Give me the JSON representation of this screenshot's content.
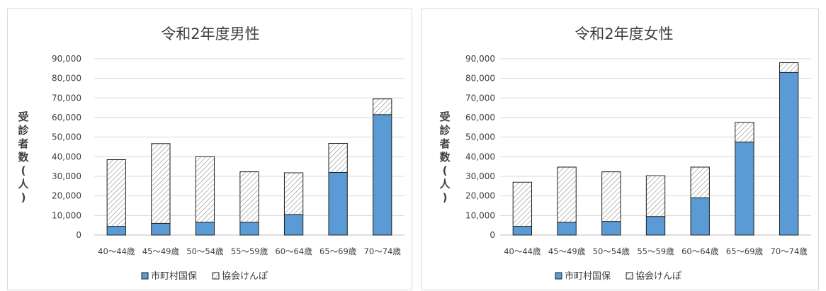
{
  "colors": {
    "kokuho": "#5b9bd5",
    "kokuho_border": "#1f1f1f",
    "kyokai_fill": "#ffffff",
    "kyokai_hatch": "#8c8c8c",
    "gridline": "#d9d9d9",
    "text": "#404040"
  },
  "chart_data": [
    {
      "type": "bar",
      "stacked": true,
      "title": "令和2年度男性",
      "ylabel": "受診者数(人)",
      "xlabel": "",
      "ylim": [
        0,
        90000
      ],
      "yticks": [
        0,
        10000,
        20000,
        30000,
        40000,
        50000,
        60000,
        70000,
        80000,
        90000
      ],
      "ytick_labels": [
        "0",
        "10,000",
        "20,000",
        "30,000",
        "40,000",
        "50,000",
        "60,000",
        "70,000",
        "80,000",
        "90,000"
      ],
      "grid": true,
      "legend_position": "bottom",
      "categories": [
        "40～44歳",
        "45～49歳",
        "50～54歳",
        "55～59歳",
        "60～64歳",
        "65～69歳",
        "70～74歳"
      ],
      "series": [
        {
          "name": "市町村国保",
          "values": [
            4500,
            6000,
            6500,
            6500,
            10500,
            32000,
            61500
          ]
        },
        {
          "name": "協会けんぽ",
          "values": [
            34000,
            40700,
            33500,
            25800,
            21300,
            14800,
            8000
          ]
        }
      ]
    },
    {
      "type": "bar",
      "stacked": true,
      "title": "令和2年度女性",
      "ylabel": "受診者数(人)",
      "xlabel": "",
      "ylim": [
        0,
        90000
      ],
      "yticks": [
        0,
        10000,
        20000,
        30000,
        40000,
        50000,
        60000,
        70000,
        80000,
        90000
      ],
      "ytick_labels": [
        "0",
        "10,000",
        "20,000",
        "30,000",
        "40,000",
        "50,000",
        "60,000",
        "70,000",
        "80,000",
        "90,000"
      ],
      "grid": true,
      "legend_position": "bottom",
      "categories": [
        "40～44歳",
        "45～49歳",
        "50～54歳",
        "55～59歳",
        "60～64歳",
        "65～69歳",
        "70～74歳"
      ],
      "series": [
        {
          "name": "市町村国保",
          "values": [
            4500,
            6500,
            7000,
            9500,
            19000,
            47500,
            83000
          ]
        },
        {
          "name": "協会けんぽ",
          "values": [
            22500,
            28200,
            25300,
            20800,
            15700,
            10000,
            5000
          ]
        }
      ]
    }
  ]
}
